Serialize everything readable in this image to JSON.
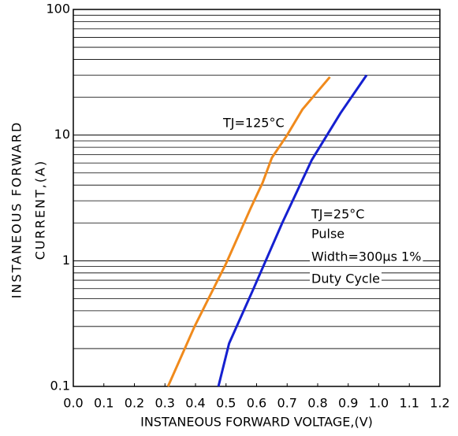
{
  "chart_data": {
    "type": "line",
    "xlabel": "INSTANEOUS FORWARD VOLTAGE,(V)",
    "ylabel": [
      "INSTANEOUS FORWARD",
      "CURRENT,(A)"
    ],
    "xlim": [
      0,
      1.2
    ],
    "xticks": [
      {
        "value": 0,
        "label": "0.0"
      },
      0.1,
      0.2,
      0.3,
      0.4,
      0.5,
      0.6,
      0.7,
      0.8,
      0.9,
      {
        "value": 1,
        "label": "1.0"
      },
      1.1,
      1.2
    ],
    "ylim": [
      0.1,
      100
    ],
    "yticks": [
      0.1,
      1,
      10,
      100
    ],
    "ylog": true,
    "grid": true,
    "minor_grid": true,
    "annotations": [
      "TJ=125°C",
      "TJ=25°C",
      "Pulse",
      "Width=300µs 1%",
      "Duty Cycle"
    ],
    "series": [
      {
        "name": "TJ=125°C",
        "color": "#f08a1c",
        "x": [
          0.31,
          0.397,
          0.5,
          0.58,
          0.62,
          0.65,
          0.7,
          0.75,
          0.84
        ],
        "values": [
          0.1,
          0.3,
          0.95,
          2.6,
          4.2,
          6.6,
          10,
          16,
          29
        ]
      },
      {
        "name": "TJ=25°C",
        "color": "#1520d0",
        "x": [
          0.475,
          0.51,
          0.586,
          0.684,
          0.78,
          0.875,
          0.96
        ],
        "values": [
          0.1,
          0.22,
          0.57,
          2.0,
          6.3,
          15,
          30
        ]
      }
    ]
  }
}
